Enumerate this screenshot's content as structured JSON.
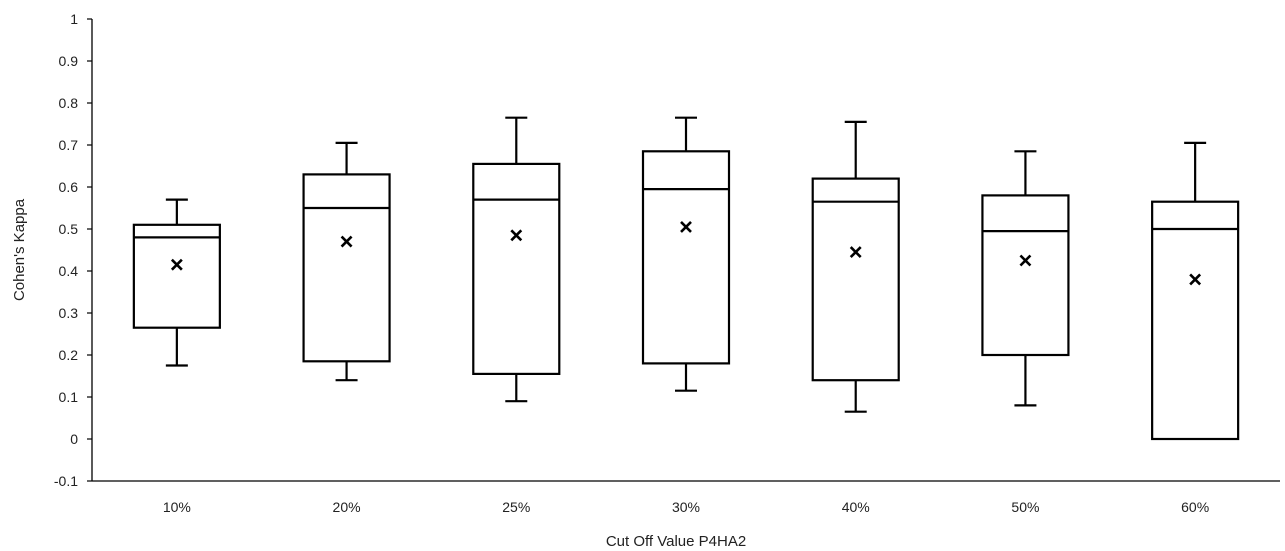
{
  "chart_data": {
    "type": "box",
    "title": "",
    "xlabel": "Cut Off Value P4HA2",
    "ylabel": "Cohen's Kappa",
    "ylim": [
      -0.1,
      1
    ],
    "yticks": [
      -0.1,
      0,
      0.1,
      0.2,
      0.3,
      0.4,
      0.5,
      0.6,
      0.7,
      0.8,
      0.9,
      1
    ],
    "ytick_labels": [
      "-0.1",
      "0",
      "0.1",
      "0.2",
      "0.3",
      "0.4",
      "0.5",
      "0.6",
      "0.7",
      "0.8",
      "0.9",
      "1"
    ],
    "grid": false,
    "legend": "none",
    "colors": {
      "stroke": "#000000",
      "fill": "#ffffff",
      "axis": "#000000"
    },
    "categories": [
      "10%",
      "20%",
      "25%",
      "30%",
      "40%",
      "50%",
      "60%"
    ],
    "boxes": [
      {
        "category": "10%",
        "whisker_low": 0.175,
        "q1": 0.265,
        "median": 0.48,
        "q3": 0.51,
        "whisker_high": 0.57,
        "mean": 0.415
      },
      {
        "category": "20%",
        "whisker_low": 0.14,
        "q1": 0.185,
        "median": 0.55,
        "q3": 0.63,
        "whisker_high": 0.705,
        "mean": 0.47
      },
      {
        "category": "25%",
        "whisker_low": 0.09,
        "q1": 0.155,
        "median": 0.57,
        "q3": 0.655,
        "whisker_high": 0.765,
        "mean": 0.485
      },
      {
        "category": "30%",
        "whisker_low": 0.115,
        "q1": 0.18,
        "median": 0.595,
        "q3": 0.685,
        "whisker_high": 0.765,
        "mean": 0.505
      },
      {
        "category": "40%",
        "whisker_low": 0.065,
        "q1": 0.14,
        "median": 0.565,
        "q3": 0.62,
        "whisker_high": 0.755,
        "mean": 0.445
      },
      {
        "category": "50%",
        "whisker_low": 0.08,
        "q1": 0.2,
        "median": 0.495,
        "q3": 0.58,
        "whisker_high": 0.685,
        "mean": 0.425
      },
      {
        "category": "60%",
        "whisker_low": 0.0,
        "q1": 0.0,
        "median": 0.5,
        "q3": 0.565,
        "whisker_high": 0.705,
        "mean": 0.38
      }
    ]
  }
}
